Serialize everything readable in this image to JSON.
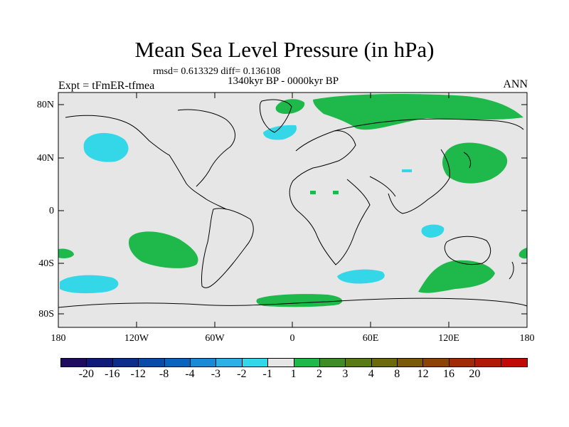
{
  "title": "Mean Sea Level Pressure (in hPa)",
  "stats": "rmsd= 0.613329  diff= 0.136108",
  "period": "1340kyr BP - 0000kyr BP",
  "expt": "Expt = tFmER-tfmea",
  "season": "ANN",
  "lat_labels": [
    "80N",
    "40N",
    "0",
    "40S",
    "80S"
  ],
  "lon_labels": [
    "180",
    "120W",
    "60W",
    "0",
    "60E",
    "120E",
    "180"
  ],
  "colorbar": {
    "colors": [
      "#1f0c5e",
      "#101a78",
      "#0c2d8c",
      "#0a4aa8",
      "#0a63bd",
      "#1a8ad6",
      "#2cb0e6",
      "#33d7e8",
      "#e6e6e6",
      "#1fb84a",
      "#3f8c26",
      "#5a7a16",
      "#6b6a0c",
      "#7a5a08",
      "#8c4406",
      "#a02b08",
      "#b01808",
      "#c00a0a"
    ],
    "labels": [
      "-20",
      "-16",
      "-12",
      "-8",
      "-4",
      "-3",
      "-2",
      "-1",
      "1",
      "2",
      "3",
      "4",
      "8",
      "12",
      "16",
      "20"
    ]
  },
  "anomaly_colors": {
    "background": "#e6e6e6",
    "positive": "#1fb84a",
    "negative": "#33d7e8",
    "coast": "#000000"
  }
}
